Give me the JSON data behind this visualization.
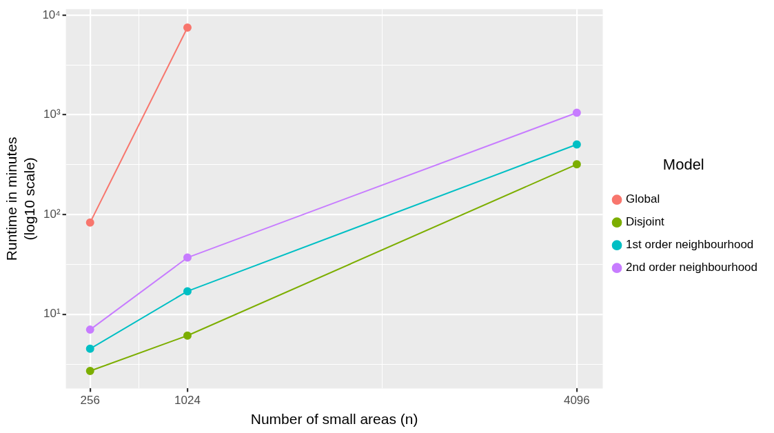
{
  "chart_data": {
    "type": "line",
    "xlabel": "Number of small areas (n)",
    "ylabel": "Runtime in minutes\n(log10 scale)",
    "legend_title": "Model",
    "legend": "right",
    "log": "y",
    "grid": true,
    "marker": "circle",
    "line_style": "solid",
    "x": [
      256,
      1024,
      4096
    ],
    "xlim": [
      65,
      4301
    ],
    "xticks": [
      256,
      {
        "value": 640,
        "label": null
      },
      1024,
      {
        "value": 2560,
        "label": null
      },
      4096
    ],
    "ylim": [
      1.8,
      11500
    ],
    "yticks": [
      {
        "value": 3.16,
        "label": null
      },
      {
        "value": 10,
        "label": "10¹"
      },
      {
        "value": 31.6,
        "label": null
      },
      {
        "value": 100,
        "label": "10²"
      },
      {
        "value": 316,
        "label": null
      },
      {
        "value": 1000,
        "label": "10³"
      },
      {
        "value": 3162,
        "label": null
      },
      {
        "value": 10000,
        "label": "10⁴"
      }
    ],
    "series": [
      {
        "name": "Global",
        "color": "#f8766d",
        "values": [
          83,
          7500,
          null
        ]
      },
      {
        "name": "Disjoint",
        "color": "#7cae00",
        "values": [
          2.7,
          6.1,
          319
        ]
      },
      {
        "name": "1st order neighbourhood",
        "color": "#00bfc4",
        "values": [
          4.5,
          17,
          505
        ]
      },
      {
        "name": "2nd order neighbourhood",
        "color": "#c77cff",
        "values": [
          7,
          37,
          1050
        ]
      }
    ]
  }
}
